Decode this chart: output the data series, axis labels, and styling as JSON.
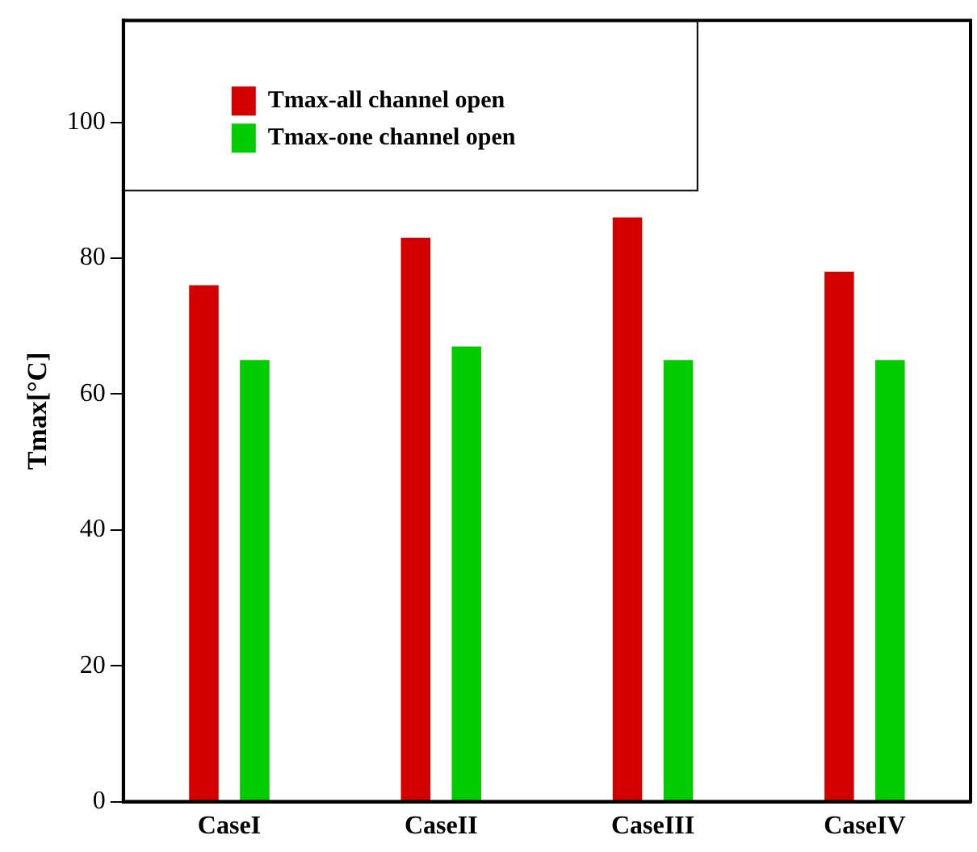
{
  "chart_data": {
    "type": "bar",
    "categories": [
      "CaseI",
      "CaseII",
      "CaseIII",
      "CaseIV"
    ],
    "ylabel": "Tmax[°C]",
    "ylim": [
      0,
      115
    ],
    "yticks": [
      0,
      20,
      40,
      60,
      80,
      100
    ],
    "grid": false,
    "legend": "top left",
    "series": [
      {
        "name": "Tmax-all channel open",
        "color": "#d40000",
        "values": [
          76,
          83,
          86,
          78
        ]
      },
      {
        "name": "Tmax-one channel open",
        "color": "#00cc00",
        "values": [
          65,
          67,
          65,
          65
        ]
      }
    ]
  }
}
